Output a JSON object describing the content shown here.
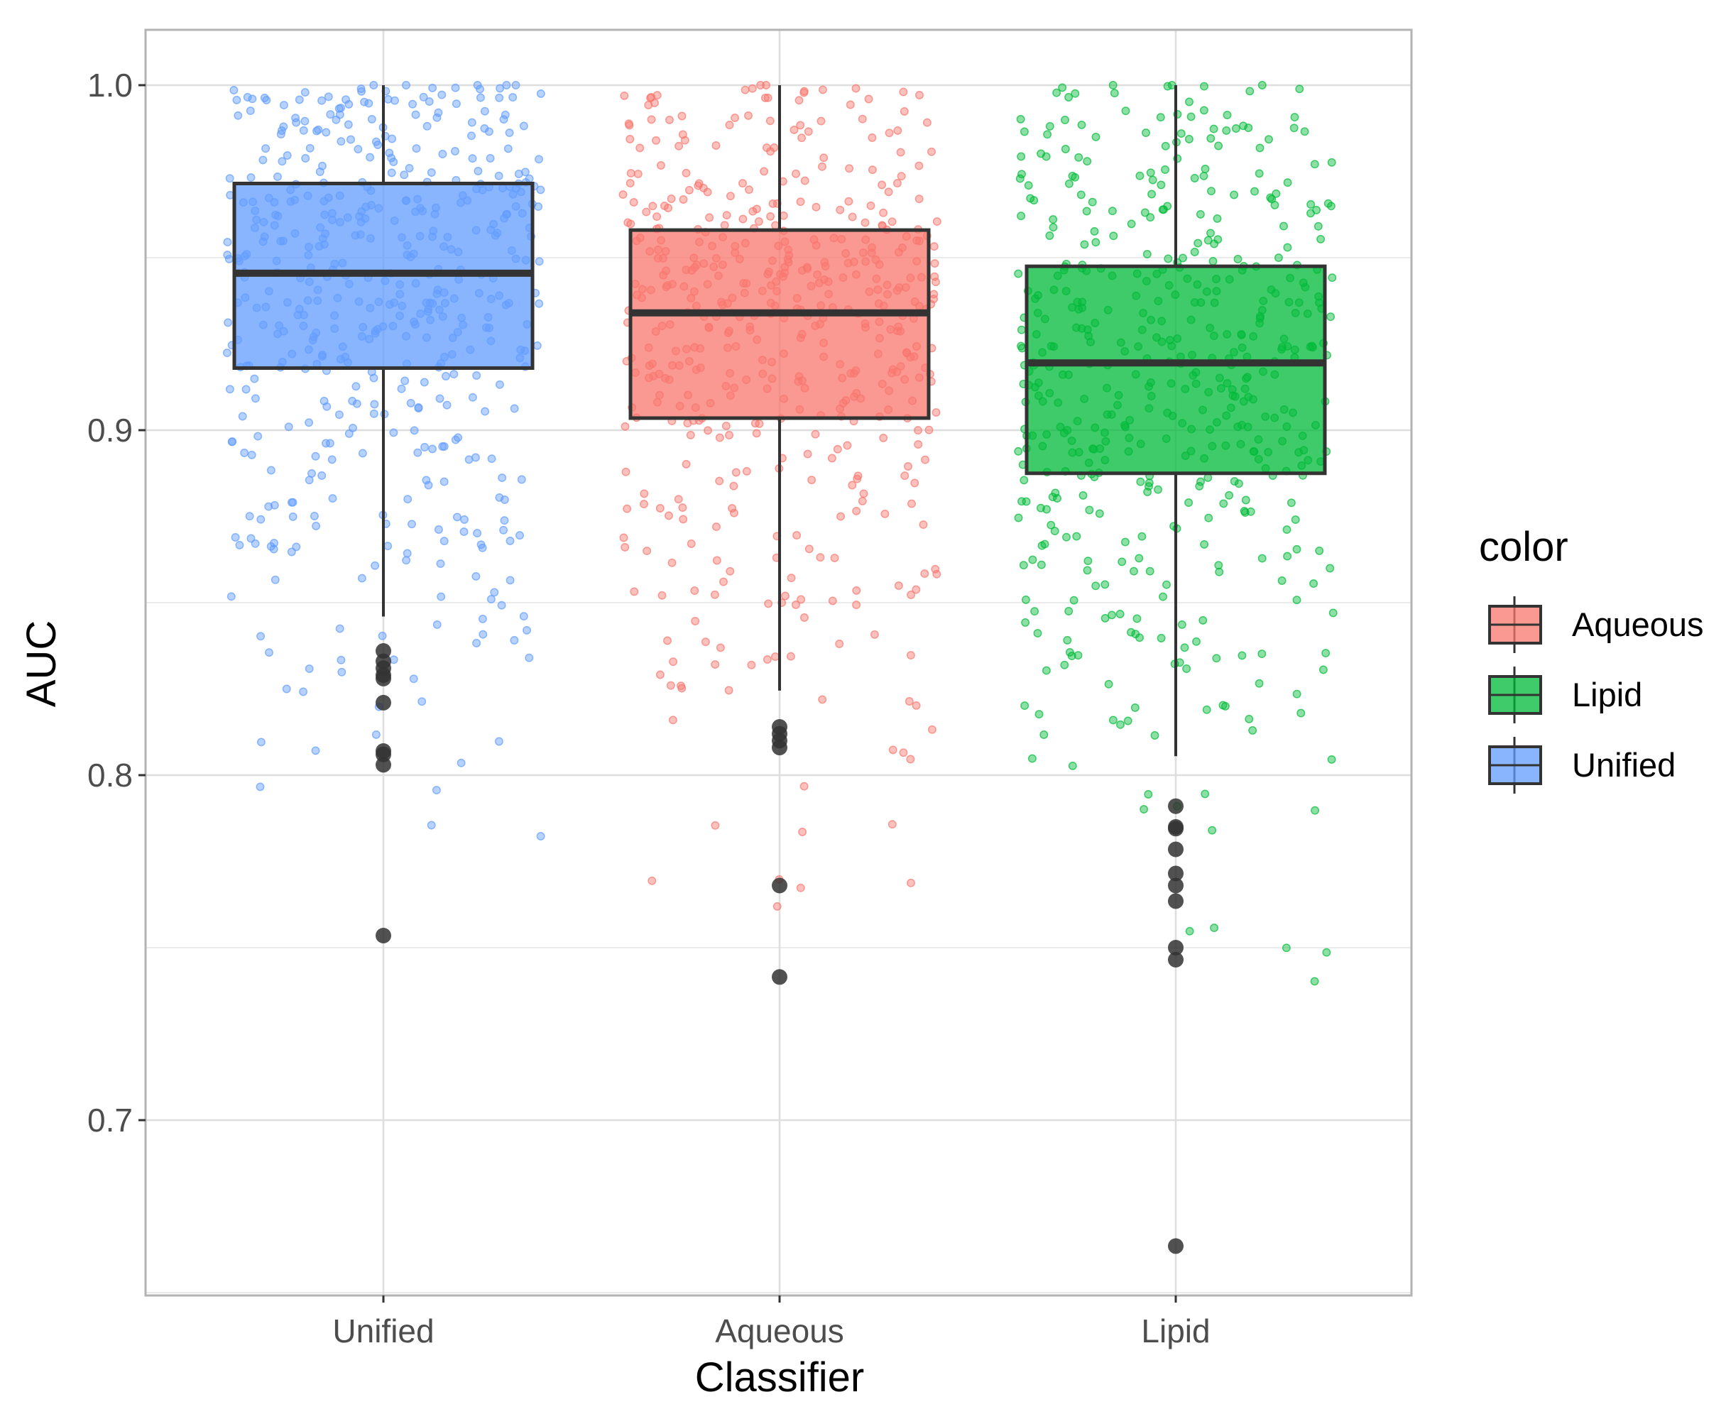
{
  "chart_data": {
    "type": "box",
    "xlabel": "Classifier",
    "ylabel": "AUC",
    "ylim": [
      0.65,
      1.0
    ],
    "yticks": [
      0.7,
      0.8,
      0.9,
      1.0
    ],
    "ytick_labels": [
      "0.7",
      "0.8",
      "0.9",
      "1.0"
    ],
    "grid": true,
    "categories": [
      "Unified",
      "Aqueous",
      "Lipid"
    ],
    "series": [
      {
        "name": "Unified",
        "color": "#619CFF",
        "whisker_low": 0.846,
        "q1": 0.918,
        "median": 0.9455,
        "q3": 0.9715,
        "whisker_high": 1.0,
        "outliers": [
          0.836,
          0.833,
          0.831,
          0.829,
          0.828,
          0.821,
          0.807,
          0.806,
          0.803,
          0.7535
        ]
      },
      {
        "name": "Aqueous",
        "color": "#F8766D",
        "whisker_low": 0.8245,
        "q1": 0.9035,
        "median": 0.934,
        "q3": 0.958,
        "whisker_high": 1.0,
        "outliers": [
          0.814,
          0.812,
          0.81,
          0.808,
          0.768,
          0.7415
        ]
      },
      {
        "name": "Lipid",
        "color": "#00BA38",
        "whisker_low": 0.8055,
        "q1": 0.8875,
        "median": 0.9195,
        "q3": 0.9475,
        "whisker_high": 1.0,
        "outliers": [
          0.791,
          0.785,
          0.7845,
          0.7785,
          0.7715,
          0.768,
          0.7635,
          0.75,
          0.7465,
          0.6635
        ]
      }
    ],
    "legend": {
      "title": "color",
      "position": "right",
      "entries": [
        "Aqueous",
        "Lipid",
        "Unified"
      ]
    }
  }
}
